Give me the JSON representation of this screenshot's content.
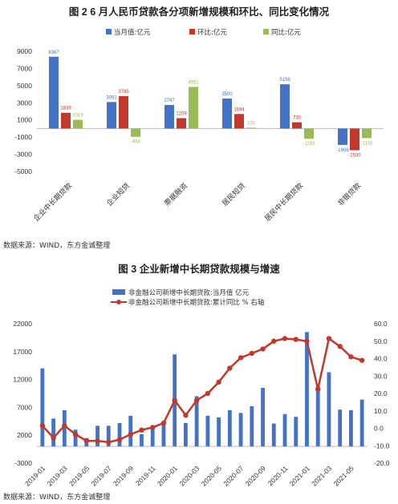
{
  "chart_data": [
    {
      "type": "bar",
      "title": "图 2   6 月人民币贷款各分项新增规模和环比、同比变化情况",
      "categories": [
        "企业中长期贷款",
        "企业短贷",
        "票据融资",
        "居民短贷",
        "居民中长期贷款",
        "非银贷款"
      ],
      "series": [
        {
          "name": "当月值:亿元",
          "color": "#4472c4",
          "values": [
            8367,
            3091,
            2747,
            3500,
            5156,
            -1906
          ]
        },
        {
          "name": "环比:亿元",
          "color": "#c0392b",
          "values": [
            1839,
            3785,
            1209,
            1694,
            730,
            -2530
          ]
        },
        {
          "name": "同比:亿元",
          "color": "#9bbb59",
          "values": [
            1019,
            -960,
            4851,
            100,
            -1193,
            -1116
          ]
        }
      ],
      "yticks": [
        "9000",
        "7000",
        "5000",
        "3000",
        "1000",
        "-1000",
        "-3000",
        "-5000"
      ],
      "ylim": [
        -5000,
        9000
      ],
      "legend_position": "top"
    },
    {
      "type": "bar+line",
      "title": "图 3   企业新增中长期贷款规模与增速",
      "x": [
        "2019-01",
        "2019-02",
        "2019-03",
        "2019-04",
        "2019-05",
        "2019-06",
        "2019-07",
        "2019-08",
        "2019-09",
        "2019-10",
        "2019-11",
        "2019-12",
        "2020-01",
        "2020-02",
        "2020-03",
        "2020-04",
        "2020-05",
        "2020-06",
        "2020-07",
        "2020-08",
        "2020-09",
        "2020-10",
        "2020-11",
        "2020-12",
        "2021-01",
        "2021-02",
        "2021-03",
        "2021-04",
        "2021-05",
        "2021-06"
      ],
      "xticks": [
        "2019-01",
        "2019-03",
        "2019-05",
        "2019-07",
        "2019-09",
        "2019-11",
        "2020-01",
        "2020-03",
        "2020-05",
        "2020-07",
        "2020-09",
        "2020-11",
        "2021-01",
        "2021-03",
        "2021-05"
      ],
      "series": [
        {
          "name": "非金融公司新增中长期贷款:当月值 亿元",
          "type": "bar",
          "axis": "left",
          "color": "#4472c4",
          "values": [
            14000,
            5000,
            6500,
            3000,
            1500,
            3700,
            3700,
            4200,
            5500,
            2200,
            3700,
            4000,
            16500,
            4200,
            9000,
            5500,
            5200,
            6500,
            6000,
            7200,
            10500,
            4100,
            5800,
            5300,
            20500,
            10900,
            13300,
            6600,
            6500,
            8400
          ]
        },
        {
          "name": "非金融公司新增中长期贷款:累计同比 % 右轴",
          "type": "line",
          "axis": "right",
          "color": "#c0392b",
          "values": [
            1.5,
            -5.5,
            1.5,
            -3.5,
            -7.2,
            -7.2,
            -8.0,
            -6.5,
            -3.5,
            -1.0,
            0.5,
            3.0,
            16.0,
            7.5,
            16.0,
            20.0,
            26.5,
            34.5,
            40.5,
            43.0,
            45.5,
            50.0,
            51.5,
            51.0,
            50.0,
            22.5,
            51.5,
            47.0,
            41.0,
            39.0
          ]
        }
      ],
      "yticks_left": [
        "22000",
        "17000",
        "12000",
        "7000",
        "2000",
        "-3000"
      ],
      "ylim_left": [
        -3000,
        22000
      ],
      "yticks_right": [
        "60.0",
        "50.0",
        "40.0",
        "30.0",
        "20.0",
        "10.0",
        "0.0",
        "-10.0",
        "-20.0"
      ],
      "ylim_right": [
        -20,
        60
      ],
      "legend_position": "top"
    }
  ],
  "sources": [
    "数据来源：WIND，东方金诚整理",
    "数据来源：WIND，东方金诚整理"
  ]
}
